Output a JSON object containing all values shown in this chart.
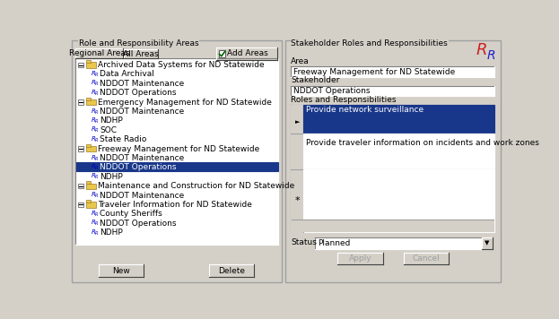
{
  "bg_color": "#d4d0c8",
  "white": "#ffffff",
  "selected_blue": "#19378a",
  "text_color": "#000000",
  "left_panel_title": "Role and Responsibility Areas",
  "right_panel_title": "Stakeholder Roles and Responsibilities",
  "tab1": "Regional Areas",
  "tab2": "All Areas",
  "add_btn": "Add Areas",
  "tree_items": [
    {
      "level": 0,
      "text": "Archived Data Systems for ND Statewide",
      "type": "folder"
    },
    {
      "level": 1,
      "text": "Data Archival",
      "type": "leaf"
    },
    {
      "level": 1,
      "text": "NDDOT Maintenance",
      "type": "leaf"
    },
    {
      "level": 1,
      "text": "NDDOT Operations",
      "type": "leaf"
    },
    {
      "level": 0,
      "text": "Emergency Management for ND Statewide",
      "type": "folder"
    },
    {
      "level": 1,
      "text": "NDDOT Maintenance",
      "type": "leaf"
    },
    {
      "level": 1,
      "text": "NDHP",
      "type": "leaf"
    },
    {
      "level": 1,
      "text": "SOC",
      "type": "leaf"
    },
    {
      "level": 1,
      "text": "State Radio",
      "type": "leaf"
    },
    {
      "level": 0,
      "text": "Freeway Management for ND Statewide",
      "type": "folder"
    },
    {
      "level": 1,
      "text": "NDDOT Maintenance",
      "type": "leaf"
    },
    {
      "level": 1,
      "text": "NDDOT Operations",
      "type": "leaf",
      "selected": true
    },
    {
      "level": 1,
      "text": "NDHP",
      "type": "leaf"
    },
    {
      "level": 0,
      "text": "Maintenance and Construction for ND Statewide",
      "type": "folder"
    },
    {
      "level": 1,
      "text": "NDDOT Maintenance",
      "type": "leaf"
    },
    {
      "level": 0,
      "text": "Traveler Information for ND Statewide",
      "type": "folder"
    },
    {
      "level": 1,
      "text": "County Sheriffs",
      "type": "leaf"
    },
    {
      "level": 1,
      "text": "NDDOT Operations",
      "type": "leaf"
    },
    {
      "level": 1,
      "text": "NDHP",
      "type": "leaf"
    }
  ],
  "area_label": "Area",
  "area_value": "Freeway Management for ND Statewide",
  "stakeholder_label": "Stakeholder",
  "stakeholder_value": "NDDOT Operations",
  "roles_label": "Roles and Responsibilities",
  "role_item1": "Provide network surveillance",
  "role_item2": "Provide traveler information on incidents and work zones",
  "status_label": "Status",
  "status_value": "Planned",
  "btn_new": "New",
  "btn_delete": "Delete",
  "btn_apply": "Apply",
  "btn_cancel": "Cancel",
  "fs_small": 6.5,
  "fs_tiny": 5.5
}
